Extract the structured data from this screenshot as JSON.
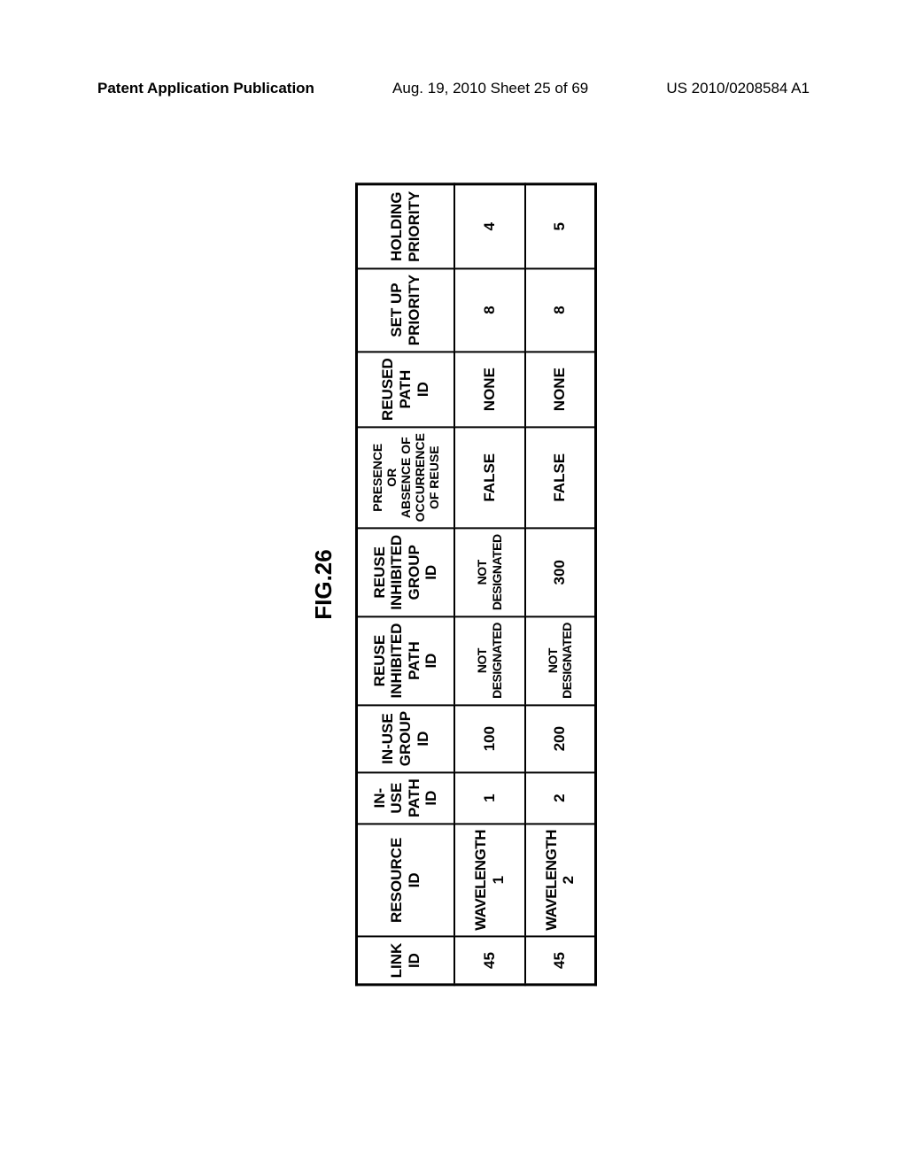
{
  "header": {
    "left": "Patent Application Publication",
    "center": "Aug. 19, 2010  Sheet 25 of 69",
    "right": "US 2010/0208584 A1"
  },
  "figure": {
    "label": "FIG.26",
    "columns": [
      "LINK ID",
      "RESOURCE ID",
      "IN-USE PATH ID",
      "IN-USE GROUP ID",
      "REUSE INHIBITED PATH ID",
      "REUSE INHIBITED GROUP ID",
      "PRESENCE OR ABSENCE OF OCCURRENCE OF REUSE",
      "REUSED PATH ID",
      "SET UP PRIORITY",
      "HOLDING PRIORITY"
    ],
    "rows": [
      {
        "link_id": "45",
        "resource_id": "WAVELENGTH 1",
        "inuse_path_id": "1",
        "inuse_group_id": "100",
        "reuse_inhibited_path_id": "NOT DESIGNATED",
        "reuse_inhibited_group_id": "NOT DESIGNATED",
        "presence_reuse": "FALSE",
        "reused_path_id": "NONE",
        "setup_priority": "8",
        "holding_priority": "4"
      },
      {
        "link_id": "45",
        "resource_id": "WAVELENGTH 2",
        "inuse_path_id": "2",
        "inuse_group_id": "200",
        "reuse_inhibited_path_id": "NOT DESIGNATED",
        "reuse_inhibited_group_id": "300",
        "presence_reuse": "FALSE",
        "reused_path_id": "NONE",
        "setup_priority": "8",
        "holding_priority": "5"
      }
    ]
  }
}
